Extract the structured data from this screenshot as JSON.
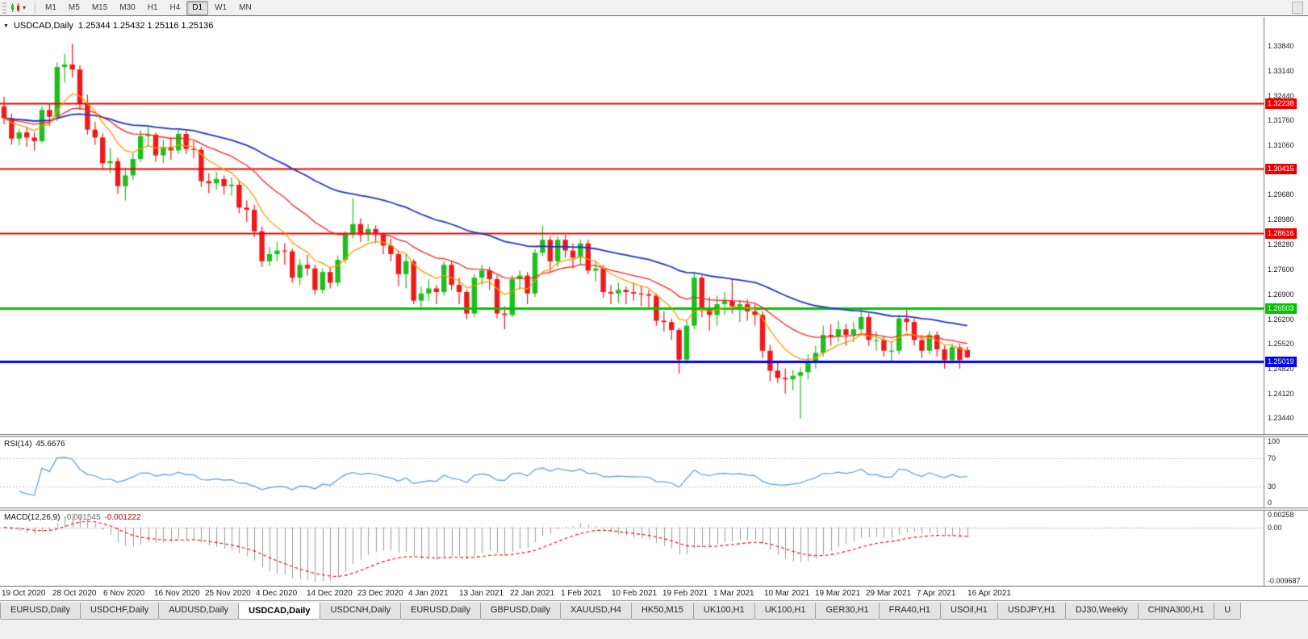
{
  "toolbar": {
    "timeframes": [
      "M1",
      "M5",
      "M15",
      "M30",
      "H1",
      "H4",
      "D1",
      "W1",
      "MN"
    ],
    "active_timeframe": "D1",
    "chart_icon": "candlestick-chart-icon",
    "caret_glyph": "▾"
  },
  "chart_data": {
    "type": "candlestick",
    "title": "USDCAD,Daily",
    "ohlc_text": "1.25344 1.25432 1.25116 1.25136",
    "collapse_glyph": "▼",
    "price_range": {
      "top": 1.3465,
      "bottom": 1.2299
    },
    "y_axis_labels": [
      "1.33840",
      "1.33140",
      "1.32440",
      "1.31760",
      "1.31060",
      "1.30380",
      "1.29680",
      "1.28980",
      "1.28280",
      "1.27600",
      "1.26900",
      "1.26200",
      "1.25520",
      "1.24820",
      "1.24120",
      "1.23440"
    ],
    "x_labels": [
      "19 Oct 2020",
      "28 Oct 2020",
      "6 Nov 2020",
      "16 Nov 2020",
      "25 Nov 2020",
      "4 Dec 2020",
      "14 Dec 2020",
      "23 Dec 2020",
      "4 Jan 2021",
      "13 Jan 2021",
      "22 Jan 2021",
      "1 Feb 2021",
      "10 Feb 2021",
      "19 Feb 2021",
      "1 Mar 2021",
      "10 Mar 2021",
      "19 Mar 2021",
      "29 Mar 2021",
      "7 Apr 2021",
      "16 Apr 2021"
    ],
    "hlines": [
      {
        "price": 1.32238,
        "label": "1.32238",
        "color": "#ee0000",
        "thickness": 2
      },
      {
        "price": 1.30415,
        "label": "1.30415",
        "color": "#ee0000",
        "thickness": 2
      },
      {
        "price": 1.28616,
        "label": "1.28616",
        "color": "#ee0000",
        "thickness": 2
      },
      {
        "price": 1.26503,
        "label": "1.26503",
        "color": "#00c400",
        "thickness": 3
      },
      {
        "price": 1.25019,
        "label": "1.25019",
        "color": "#0000ee",
        "thickness": 3
      }
    ],
    "colors": {
      "up": "#1dbf1d",
      "down": "#f01818",
      "ma_fast": "#ff9900",
      "ma_mid": "#ff2020",
      "ma_slow": "#2233cc"
    },
    "ma": {
      "fast_period": 8,
      "mid_period": 21,
      "slow_period": 50
    },
    "ohlc": [
      [
        1.3215,
        1.3242,
        1.3165,
        1.3182
      ],
      [
        1.3182,
        1.3195,
        1.3108,
        1.3125
      ],
      [
        1.3125,
        1.3152,
        1.3106,
        1.3142
      ],
      [
        1.3142,
        1.3158,
        1.3102,
        1.3128
      ],
      [
        1.3128,
        1.3142,
        1.3092,
        1.3118
      ],
      [
        1.3118,
        1.3215,
        1.3112,
        1.3205
      ],
      [
        1.3205,
        1.3222,
        1.316,
        1.3186
      ],
      [
        1.3186,
        1.3338,
        1.3174,
        1.3325
      ],
      [
        1.3325,
        1.3362,
        1.3282,
        1.3332
      ],
      [
        1.3332,
        1.339,
        1.3296,
        1.3318
      ],
      [
        1.3318,
        1.333,
        1.3205,
        1.3222
      ],
      [
        1.3222,
        1.3248,
        1.3136,
        1.315
      ],
      [
        1.315,
        1.3172,
        1.3108,
        1.3128
      ],
      [
        1.3128,
        1.314,
        1.3042,
        1.3056
      ],
      [
        1.3056,
        1.3098,
        1.303,
        1.3062
      ],
      [
        1.3062,
        1.3072,
        1.297,
        1.2992
      ],
      [
        1.2992,
        1.3042,
        1.2952,
        1.3022
      ],
      [
        1.3022,
        1.3085,
        1.301,
        1.3068
      ],
      [
        1.3068,
        1.3148,
        1.306,
        1.3132
      ],
      [
        1.3132,
        1.3158,
        1.3102,
        1.3136
      ],
      [
        1.3136,
        1.3142,
        1.306,
        1.3078
      ],
      [
        1.3078,
        1.3122,
        1.3056,
        1.3102
      ],
      [
        1.3102,
        1.3128,
        1.3066,
        1.3092
      ],
      [
        1.3092,
        1.315,
        1.3082,
        1.3138
      ],
      [
        1.3138,
        1.3146,
        1.3082,
        1.3096
      ],
      [
        1.3096,
        1.3118,
        1.307,
        1.3094
      ],
      [
        1.3094,
        1.3102,
        1.299,
        1.3006
      ],
      [
        1.3006,
        1.3028,
        1.2972,
        1.3
      ],
      [
        1.3,
        1.3032,
        1.2982,
        1.3012
      ],
      [
        1.3012,
        1.3022,
        1.2968,
        1.2992
      ],
      [
        1.2992,
        1.3016,
        1.2966,
        1.2996
      ],
      [
        1.2996,
        1.3005,
        1.2916,
        1.2932
      ],
      [
        1.2932,
        1.2952,
        1.2892,
        1.2926
      ],
      [
        1.2926,
        1.294,
        1.285,
        1.2866
      ],
      [
        1.2866,
        1.288,
        1.2766,
        1.2782
      ],
      [
        1.2782,
        1.2822,
        1.277,
        1.2802
      ],
      [
        1.2802,
        1.2836,
        1.2782,
        1.2812
      ],
      [
        1.2812,
        1.2832,
        1.2772,
        1.281
      ],
      [
        1.281,
        1.2818,
        1.2722,
        1.2736
      ],
      [
        1.2736,
        1.2788,
        1.2716,
        1.2772
      ],
      [
        1.2772,
        1.28,
        1.2742,
        1.2762
      ],
      [
        1.2762,
        1.2772,
        1.2688,
        1.2702
      ],
      [
        1.2702,
        1.2762,
        1.2692,
        1.2752
      ],
      [
        1.2752,
        1.2766,
        1.2706,
        1.2722
      ],
      [
        1.2722,
        1.2798,
        1.2712,
        1.2786
      ],
      [
        1.2786,
        1.2866,
        1.2776,
        1.2856
      ],
      [
        1.2856,
        1.2958,
        1.2846,
        1.2886
      ],
      [
        1.2886,
        1.2902,
        1.2836,
        1.2856
      ],
      [
        1.2856,
        1.2886,
        1.2838,
        1.2872
      ],
      [
        1.2872,
        1.2882,
        1.2832,
        1.2856
      ],
      [
        1.2856,
        1.2862,
        1.2802,
        1.2826
      ],
      [
        1.2826,
        1.2846,
        1.2782,
        1.2802
      ],
      [
        1.2802,
        1.2812,
        1.2712,
        1.2746
      ],
      [
        1.2746,
        1.2802,
        1.2706,
        1.2782
      ],
      [
        1.2782,
        1.2788,
        1.2662,
        1.2672
      ],
      [
        1.2672,
        1.2712,
        1.2652,
        1.2692
      ],
      [
        1.2692,
        1.2732,
        1.2672,
        1.2706
      ],
      [
        1.2706,
        1.2716,
        1.2662,
        1.2696
      ],
      [
        1.2696,
        1.2782,
        1.2686,
        1.2772
      ],
      [
        1.2772,
        1.2784,
        1.2702,
        1.2716
      ],
      [
        1.2716,
        1.2736,
        1.2662,
        1.2696
      ],
      [
        1.2696,
        1.2702,
        1.262,
        1.2636
      ],
      [
        1.2636,
        1.2746,
        1.2626,
        1.2736
      ],
      [
        1.2736,
        1.2772,
        1.2716,
        1.2756
      ],
      [
        1.2756,
        1.2766,
        1.2702,
        1.2732
      ],
      [
        1.2732,
        1.2742,
        1.2622,
        1.2636
      ],
      [
        1.2636,
        1.2656,
        1.2592,
        1.2632
      ],
      [
        1.2632,
        1.2742,
        1.2626,
        1.2732
      ],
      [
        1.2732,
        1.2756,
        1.2702,
        1.2742
      ],
      [
        1.2742,
        1.2752,
        1.2662,
        1.2692
      ],
      [
        1.2692,
        1.2816,
        1.2682,
        1.2806
      ],
      [
        1.2806,
        1.2882,
        1.2796,
        1.2842
      ],
      [
        1.2842,
        1.2852,
        1.2752,
        1.2782
      ],
      [
        1.2782,
        1.2852,
        1.2766,
        1.2842
      ],
      [
        1.2842,
        1.2856,
        1.2792,
        1.2812
      ],
      [
        1.2812,
        1.2832,
        1.2762,
        1.2792
      ],
      [
        1.2792,
        1.2842,
        1.2772,
        1.2832
      ],
      [
        1.2832,
        1.2842,
        1.2746,
        1.2756
      ],
      [
        1.2756,
        1.2782,
        1.2726,
        1.2762
      ],
      [
        1.2762,
        1.2772,
        1.268,
        1.2696
      ],
      [
        1.2696,
        1.2716,
        1.2662,
        1.2692
      ],
      [
        1.2692,
        1.2722,
        1.2666,
        1.2702
      ],
      [
        1.2702,
        1.2712,
        1.2662,
        1.2696
      ],
      [
        1.2696,
        1.2722,
        1.2672,
        1.2692
      ],
      [
        1.2692,
        1.2712,
        1.2656,
        1.269
      ],
      [
        1.269,
        1.2702,
        1.2652,
        1.2686
      ],
      [
        1.2686,
        1.2692,
        1.2602,
        1.2616
      ],
      [
        1.2616,
        1.2642,
        1.2586,
        1.2612
      ],
      [
        1.2612,
        1.2622,
        1.2562,
        1.259
      ],
      [
        1.259,
        1.2596,
        1.2468,
        1.2507
      ],
      [
        1.2507,
        1.2618,
        1.2496,
        1.2602
      ],
      [
        1.2602,
        1.2748,
        1.2592,
        1.2736
      ],
      [
        1.2736,
        1.2742,
        1.2626,
        1.2652
      ],
      [
        1.2652,
        1.2682,
        1.2588,
        1.2632
      ],
      [
        1.2632,
        1.2686,
        1.2602,
        1.2662
      ],
      [
        1.2662,
        1.2696,
        1.2632,
        1.2672
      ],
      [
        1.2672,
        1.2732,
        1.2636,
        1.2656
      ],
      [
        1.2656,
        1.2672,
        1.2612,
        1.2662
      ],
      [
        1.2662,
        1.2676,
        1.2616,
        1.2642
      ],
      [
        1.2642,
        1.2662,
        1.2602,
        1.2632
      ],
      [
        1.2632,
        1.2642,
        1.2512,
        1.2532
      ],
      [
        1.2532,
        1.2548,
        1.2446,
        1.2476
      ],
      [
        1.2476,
        1.2502,
        1.2442,
        1.2456
      ],
      [
        1.2456,
        1.2482,
        1.2412,
        1.2452
      ],
      [
        1.2452,
        1.2478,
        1.2422,
        1.2462
      ],
      [
        1.2462,
        1.2486,
        1.2342,
        1.2472
      ],
      [
        1.2472,
        1.2522,
        1.2452,
        1.2502
      ],
      [
        1.2502,
        1.2546,
        1.2482,
        1.2526
      ],
      [
        1.2526,
        1.2602,
        1.2516,
        1.2576
      ],
      [
        1.2576,
        1.2606,
        1.2546,
        1.2572
      ],
      [
        1.2572,
        1.2616,
        1.2556,
        1.2592
      ],
      [
        1.2592,
        1.2606,
        1.2546,
        1.2576
      ],
      [
        1.2576,
        1.2612,
        1.2556,
        1.2592
      ],
      [
        1.2592,
        1.2652,
        1.2582,
        1.2626
      ],
      [
        1.2626,
        1.2636,
        1.2546,
        1.2562
      ],
      [
        1.2562,
        1.2586,
        1.2532,
        1.2562
      ],
      [
        1.2562,
        1.2572,
        1.2516,
        1.2532
      ],
      [
        1.2532,
        1.2556,
        1.2502,
        1.2532
      ],
      [
        1.2532,
        1.2632,
        1.2522,
        1.2622
      ],
      [
        1.2622,
        1.2652,
        1.2586,
        1.2612
      ],
      [
        1.2612,
        1.2622,
        1.2546,
        1.2562
      ],
      [
        1.2562,
        1.2576,
        1.2512,
        1.2532
      ],
      [
        1.2532,
        1.2586,
        1.2522,
        1.2576
      ],
      [
        1.2576,
        1.2586,
        1.2516,
        1.2536
      ],
      [
        1.2536,
        1.2546,
        1.2482,
        1.2506
      ],
      [
        1.2506,
        1.2552,
        1.2496,
        1.2542
      ],
      [
        1.2542,
        1.2552,
        1.2482,
        1.2506
      ],
      [
        1.25344,
        1.25432,
        1.25116,
        1.25136
      ]
    ]
  },
  "rsi": {
    "label": "RSI(14)",
    "value": "45.6676",
    "period": 14,
    "color": "#5b9bd5",
    "levels": [
      70,
      30
    ],
    "axis_labels": [
      "100",
      "70",
      "30",
      "0"
    ],
    "range": [
      0,
      100
    ]
  },
  "macd": {
    "label": "MACD(12,26,9)",
    "value_main": "-0.001545",
    "value_signal": "-0.001222",
    "fast": 12,
    "slow": 26,
    "signal": 9,
    "histogram_color": "#9b9b9b",
    "signal_color": "#ee0000",
    "axis_labels": [
      "0.00258",
      "0.00",
      "-0.009687"
    ],
    "range": {
      "top": 0.003,
      "bottom": -0.0105
    }
  },
  "tabs": {
    "items": [
      "EURUSD,Daily",
      "USDCHF,Daily",
      "AUDUSD,Daily",
      "USDCAD,Daily",
      "USDCNH,Daily",
      "EURUSD,Daily",
      "GBPUSD,Daily",
      "XAUUSD,H4",
      "HK50,M15",
      "UK100,H1",
      "UK100,H1",
      "GER30,H1",
      "FRA40,H1",
      "USOil,H1",
      "USDJPY,H1",
      "DJ30,Weekly",
      "CHINA300,H1",
      "U"
    ],
    "active_index": 3
  }
}
